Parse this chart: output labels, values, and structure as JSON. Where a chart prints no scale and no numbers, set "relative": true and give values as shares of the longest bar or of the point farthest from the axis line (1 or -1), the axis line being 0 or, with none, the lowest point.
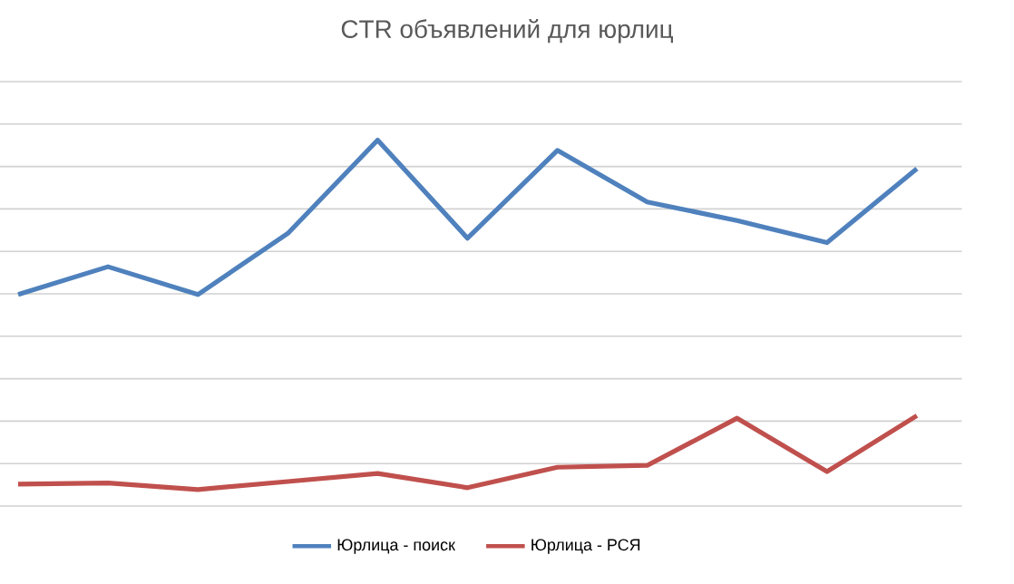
{
  "chart_data": {
    "type": "line",
    "title": "CTR объявлений для юрлиц",
    "relative": true,
    "grid": "y",
    "legend": "bottom",
    "marker": "none",
    "line_style": "solid",
    "categories": [
      null,
      null,
      null,
      null,
      null,
      null,
      null,
      null,
      null,
      null,
      null
    ],
    "series": [
      {
        "name": "Юрлица - поиск",
        "color": "#4f81bd",
        "values": [
          0.578,
          0.654,
          0.578,
          0.745,
          1,
          0.732,
          0.972,
          0.831,
          0.78,
          0.72,
          0.922
        ]
      },
      {
        "name": "Юрлица - РСЯ",
        "color": "#c0504d",
        "values": [
          0.06,
          0.063,
          0.045,
          0.067,
          0.089,
          0.05,
          0.106,
          0.111,
          0.24,
          0.094,
          0.247
        ]
      }
    ]
  }
}
